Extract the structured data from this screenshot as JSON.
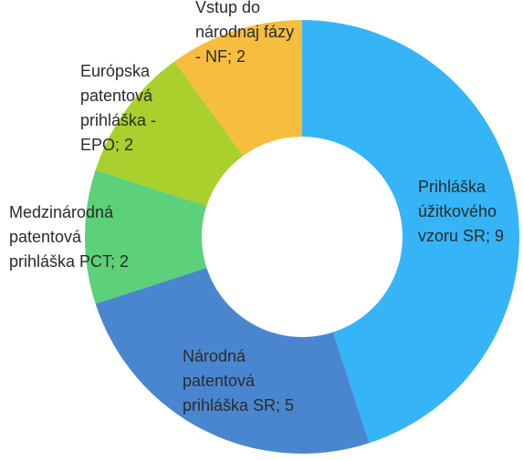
{
  "chart_data": {
    "type": "donut",
    "values": [
      9,
      5,
      2,
      2,
      2
    ],
    "value_labels": [
      "Prihláška úžitkového vzoru SR; 9",
      "Národná patentová prihláška SR; 5",
      "Medzinárodná patentová prihláška PCT; 2",
      "Európska patentová prihláška - EPO; 2",
      "Vstup do národnaj fázy - NF; 2"
    ],
    "colors": [
      "#35b5f7",
      "#4a86d0",
      "#5dd07a",
      "#a9d02c",
      "#f6bd3e"
    ]
  }
}
